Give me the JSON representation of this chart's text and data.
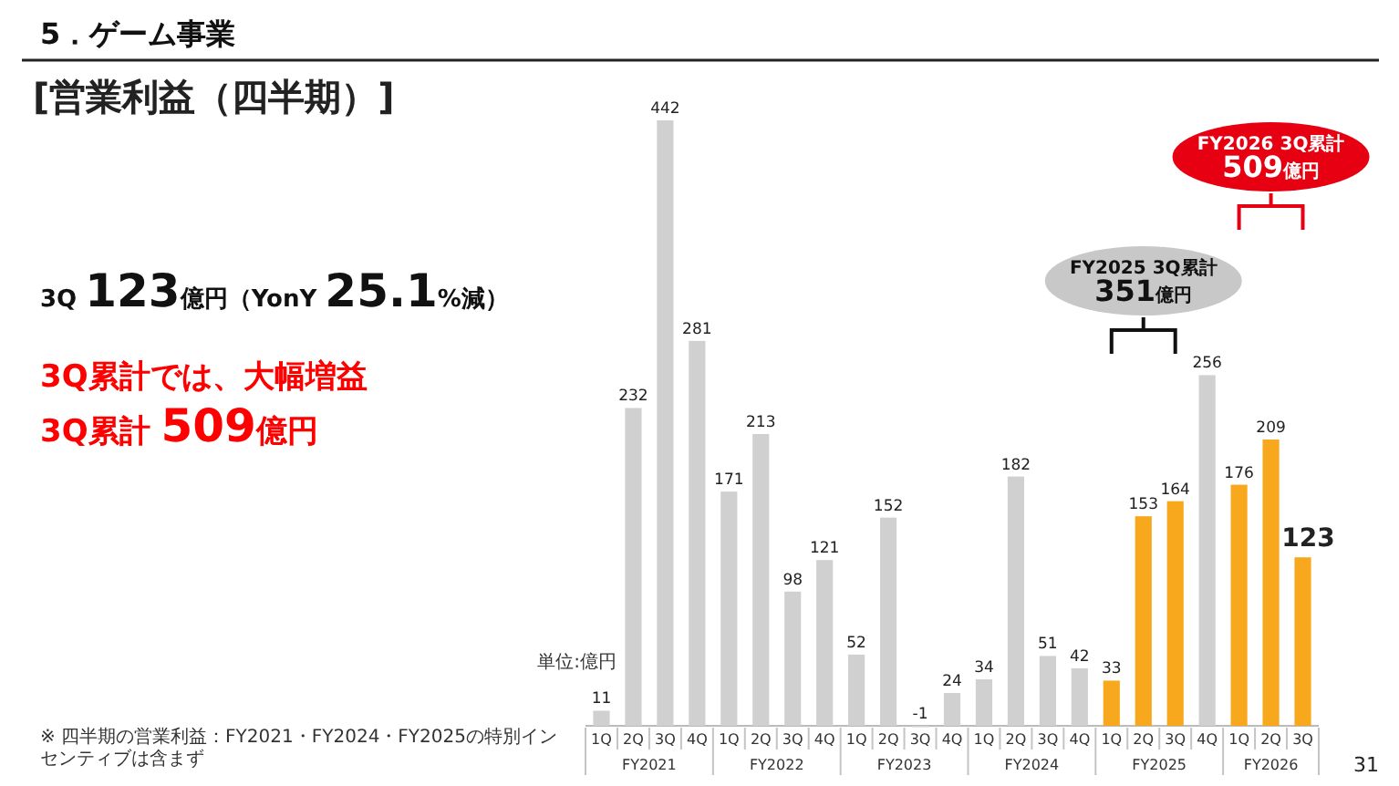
{
  "chart_data": {
    "type": "bar",
    "title": "5．ゲーム事業",
    "subtitle": "[営業利益（四半期）]",
    "categories": [
      "1Q",
      "2Q",
      "3Q",
      "4Q",
      "1Q",
      "2Q",
      "3Q",
      "4Q",
      "1Q",
      "2Q",
      "3Q",
      "4Q",
      "1Q",
      "2Q",
      "3Q",
      "4Q",
      "1Q",
      "2Q",
      "3Q",
      "4Q",
      "1Q",
      "2Q",
      "3Q"
    ],
    "values": [
      11,
      232,
      442,
      281,
      171,
      213,
      98,
      121,
      52,
      152,
      -1,
      24,
      34,
      182,
      51,
      42,
      33,
      153,
      164,
      256,
      176,
      209,
      123
    ],
    "colors": [
      "#d0d0d0",
      "#d0d0d0",
      "#d0d0d0",
      "#d0d0d0",
      "#d0d0d0",
      "#d0d0d0",
      "#d0d0d0",
      "#d0d0d0",
      "#d0d0d0",
      "#d0d0d0",
      "#d0d0d0",
      "#d0d0d0",
      "#d0d0d0",
      "#d0d0d0",
      "#d0d0d0",
      "#d0d0d0",
      "#f8a81c",
      "#f8a81c",
      "#f8a81c",
      "#d0d0d0",
      "#f8a81c",
      "#f8a81c",
      "#f8a81c"
    ],
    "data_labels": true,
    "annotations": [
      "3Q 123億円（YonY 25.1%減）",
      "3Q累計では、大幅増益",
      "3Q累計 509億円",
      "単位:億円",
      "FY2025 3Q累計\n351億円",
      "FY2026 3Q累計\n509億円",
      "※ 四半期の営業利益：FY2021・FY2024・FY2025の特別インセンティブは含まず",
      "31",
      "FY2021",
      "FY2022",
      "FY2023",
      "FY2024",
      "FY2025",
      "FY2026"
    ]
  }
}
